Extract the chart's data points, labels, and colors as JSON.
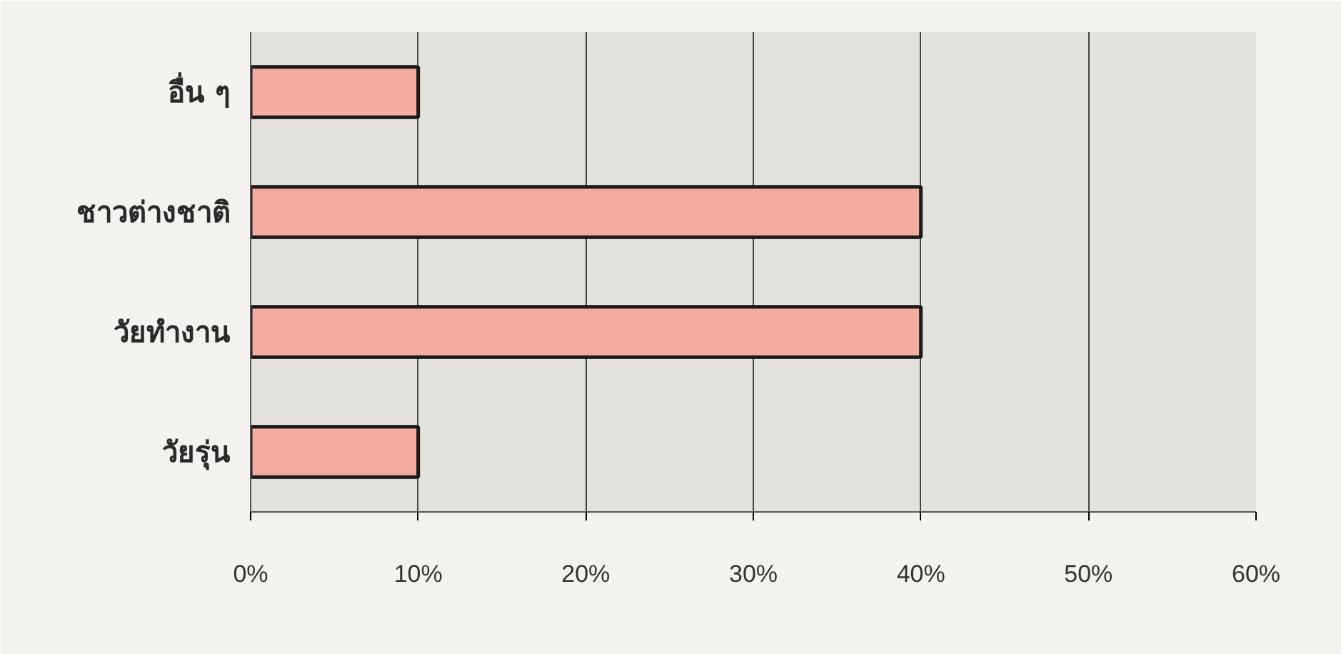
{
  "chart_data": {
    "type": "bar",
    "orientation": "horizontal",
    "categories": [
      "อื่น ๆ",
      "ชาวต่างชาติ",
      "วัยทำงาน",
      "วัยรุ่น"
    ],
    "values": [
      10,
      40,
      40,
      10
    ],
    "color": "#f4aca2",
    "xlim": [
      0,
      60
    ],
    "xticks": [
      {
        "value": 0,
        "label": "0%"
      },
      {
        "value": 10,
        "label": "10%"
      },
      {
        "value": 20,
        "label": "20%"
      },
      {
        "value": 30,
        "label": "30%"
      },
      {
        "value": 40,
        "label": "40%"
      },
      {
        "value": 50,
        "label": "50%"
      },
      {
        "value": 60,
        "label": "60%"
      }
    ],
    "grid": "x"
  }
}
